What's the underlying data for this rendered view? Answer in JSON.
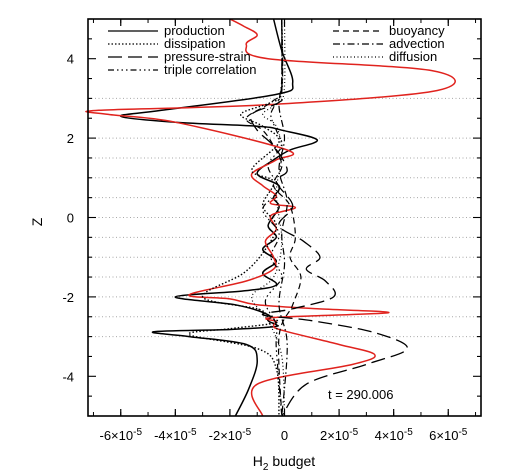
{
  "chart_data": {
    "type": "line",
    "xlabel": "H",
    "xlabel_sub": "2",
    "xlabel_rest": " budget",
    "ylabel": "Z",
    "xlim": [
      -7.2e-05,
      7.2e-05
    ],
    "ylim": [
      -5,
      5
    ],
    "x_ticks": [
      {
        "value": -6e-05,
        "mant": "-6×10",
        "exp": "-5"
      },
      {
        "value": -4e-05,
        "mant": "-4×10",
        "exp": "-5"
      },
      {
        "value": -2e-05,
        "mant": "-2×10",
        "exp": "-5"
      },
      {
        "value": 0,
        "mant": "0",
        "exp": ""
      },
      {
        "value": 2e-05,
        "mant": "2×10",
        "exp": "-5"
      },
      {
        "value": 4e-05,
        "mant": "4×10",
        "exp": "-5"
      },
      {
        "value": 6e-05,
        "mant": "6×10",
        "exp": "-5"
      }
    ],
    "y_ticks": [
      -4,
      -2,
      0,
      2,
      4
    ],
    "gridlines_y": [
      -3,
      -2.5,
      -2,
      -1.5,
      -1,
      -0.5,
      0,
      0.5,
      1,
      1.5,
      2,
      3
    ],
    "annotation": "t = 290.006",
    "legend": [
      {
        "label": "production",
        "dash": "",
        "col": 0
      },
      {
        "label": "dissipation",
        "dash": "1.5,2",
        "col": 0
      },
      {
        "label": "pressure-strain",
        "dash": "14,6",
        "col": 0
      },
      {
        "label": "triple correlation",
        "dash": "6,3,1.5,3,1.5,3,1.5,3",
        "col": 0
      },
      {
        "label": "buoyancy",
        "dash": "6,4",
        "col": 1
      },
      {
        "label": "advection",
        "dash": "7,3,1.5,3",
        "col": 1
      },
      {
        "label": "diffusion",
        "dash": "1,2.5",
        "col": 1
      }
    ],
    "series": [
      {
        "key": "production",
        "color": "#000000",
        "dash": "",
        "width": 1.5,
        "x": [
          -4e-06,
          -1e-06,
          3e-06,
          -3e-06,
          -4.5e-05,
          -6e-05,
          -4e-05,
          -1e-05,
          -1e-06,
          1.2e-05,
          2e-06,
          -4e-06,
          -1e-05,
          -2e-06,
          -4e-06,
          -2e-06,
          -6e-06,
          -3e-06,
          -8e-06,
          -3e-06,
          -8e-06,
          -3e-06,
          -1.5e-05,
          -4e-05,
          -1.8e-05,
          -6e-06,
          -6e-06,
          -3e-06,
          -4e-06,
          -2e-05,
          -4.8e-05,
          -3.5e-05,
          -1.4e-05,
          -1e-05,
          -1.3e-05,
          -1.8e-05
        ],
        "y": [
          5,
          4.2,
          3.4,
          3.1,
          2.7,
          2.55,
          2.4,
          2.3,
          2.2,
          1.95,
          1.7,
          1.45,
          1.1,
          0.8,
          0.5,
          0.25,
          -0.2,
          -0.5,
          -0.8,
          -1.1,
          -1.4,
          -1.7,
          -1.85,
          -2.0,
          -2.2,
          -2.45,
          -2.6,
          -2.7,
          -2.75,
          -2.82,
          -2.88,
          -3.0,
          -3.2,
          -3.6,
          -4.3,
          -5
        ]
      },
      {
        "key": "production-red",
        "color": "#e0231e",
        "dash": "",
        "width": 1.5,
        "x": [
          -2e-05,
          -1.5e-05,
          -1e-05,
          -1.4e-05,
          -6e-06,
          5.4e-05,
          5.6e-05,
          -4e-06,
          -6.8e-05,
          -6.5e-05,
          -4e-05,
          1e-06,
          -3e-06,
          -1.2e-05,
          -8e-06,
          -3e-06,
          -5e-06,
          4e-06,
          -5e-06,
          -3e-06,
          -7e-06,
          -4e-06,
          -4e-06,
          -1.4e-05,
          -3.5e-05,
          -2e-05,
          -1e-05,
          1.2e-05,
          3.8e-05,
          -4e-06,
          -3e-06,
          -4e-06,
          -1e-06,
          2e-05,
          3.3e-05,
          2.5e-05,
          -1e-05,
          -8e-06
        ],
        "y": [
          5,
          4.82,
          4.6,
          4.35,
          4.0,
          3.7,
          3.2,
          2.85,
          2.7,
          2.6,
          2.4,
          1.7,
          1.45,
          1.1,
          0.8,
          0.55,
          0.35,
          0.25,
          0.05,
          -0.3,
          -0.6,
          -1.0,
          -1.3,
          -1.6,
          -1.95,
          -2.05,
          -2.2,
          -2.3,
          -2.4,
          -2.52,
          -2.62,
          -2.72,
          -2.84,
          -3.2,
          -3.45,
          -3.7,
          -4.2,
          -5
        ]
      },
      {
        "key": "dissipation",
        "color": "#000000",
        "dash": "1.5,2",
        "width": 1.4,
        "x": [
          -1e-06,
          -1e-06,
          -5e-06,
          -1.6e-05,
          -8e-06,
          -2e-06,
          -1.2e-05,
          -4e-06,
          -8e-06,
          -3e-06,
          -7e-06,
          -1.5e-05,
          -3e-05,
          -1e-05,
          -6e-06,
          -3e-06,
          -2e-05,
          -3.5e-05,
          -1e-05,
          -3e-06,
          -2e-06
        ],
        "y": [
          5,
          3.2,
          2.9,
          2.6,
          2.3,
          1.9,
          1.2,
          0.9,
          0.3,
          -0.2,
          -0.8,
          -1.4,
          -2.0,
          -2.3,
          -2.5,
          -2.65,
          -2.8,
          -2.95,
          -3.3,
          -3.8,
          -5
        ]
      },
      {
        "key": "pressure-strain",
        "color": "#000000",
        "dash": "14,6",
        "width": 1.3,
        "x": [
          -1e-06,
          -1e-06,
          -2e-06,
          -1.2e-05,
          -1e-05,
          -4e-06,
          1e-06,
          -3e-06,
          3e-06,
          -2e-06,
          7e-06,
          1.3e-05,
          8e-06,
          1.5e-05,
          1.8e-05,
          3e-06,
          -8e-06,
          1e-05,
          3.3e-05,
          4.5e-05,
          3e-05,
          8e-06,
          -1e-06
        ],
        "y": [
          5,
          3.2,
          2.9,
          2.6,
          2.2,
          1.8,
          1.2,
          0.9,
          0.3,
          -0.2,
          -0.6,
          -1.0,
          -1.3,
          -1.6,
          -2.0,
          -2.3,
          -2.45,
          -2.6,
          -2.9,
          -3.3,
          -3.7,
          -4.2,
          -5
        ]
      },
      {
        "key": "triple",
        "color": "#000000",
        "dash": "6,3,1.5,3,1.5,3,1.5,3",
        "width": 1.2,
        "x": [
          -1e-06,
          -1e-06,
          -2e-06,
          -5e-06,
          -3e-06,
          -1e-06,
          -6e-06,
          -2e-06,
          -8e-06,
          -2e-06,
          -5e-06,
          -1e-06,
          -7e-06,
          -3e-06,
          -3e-06,
          -1e-06
        ],
        "y": [
          5,
          3.4,
          3.0,
          2.6,
          2.2,
          1.8,
          1.3,
          0.7,
          0.2,
          -0.4,
          -1.0,
          -1.5,
          -2.1,
          -2.7,
          -3.3,
          -5
        ]
      },
      {
        "key": "buoyancy",
        "color": "#000000",
        "dash": "6,4",
        "width": 1.2,
        "x": [
          -1e-06,
          -1e-06,
          -5e-06,
          -1.4e-05,
          -8e-06,
          -4e-06,
          -1e-06,
          -4e-06,
          2e-06,
          4e-06,
          2e-06,
          6e-06,
          3e-06,
          -2e-06,
          -1e-06
        ],
        "y": [
          5,
          3.3,
          2.9,
          2.5,
          2.2,
          1.8,
          1.3,
          0.8,
          0.3,
          -0.5,
          -1.0,
          -1.5,
          -2.2,
          -3.0,
          -5
        ]
      },
      {
        "key": "advection",
        "color": "#000000",
        "dash": "7,3,1.5,3",
        "width": 1.2,
        "x": [
          -1e-06,
          -1e-06,
          -2e-06,
          0,
          -2e-06,
          1e-06,
          -1e-06,
          0,
          -2e-06,
          1e-06,
          -1e-06
        ],
        "y": [
          5,
          3.5,
          2.8,
          2.0,
          1.2,
          0.4,
          -0.4,
          -1.2,
          -2.2,
          -3.2,
          -5
        ]
      },
      {
        "key": "diffusion",
        "color": "#000000",
        "dash": "1,2.5",
        "width": 1.2,
        "x": [
          0,
          0,
          -2e-06,
          -8e-06,
          -3e-06,
          -1e-06,
          -3e-06,
          -1e-06,
          -4e-06,
          -1.2e-05,
          -6e-06,
          -1e-06,
          0
        ],
        "y": [
          5,
          3.3,
          2.9,
          2.6,
          2.3,
          1.6,
          0.6,
          -0.6,
          -1.5,
          -2.0,
          -2.6,
          -3.5,
          -5
        ]
      }
    ]
  }
}
